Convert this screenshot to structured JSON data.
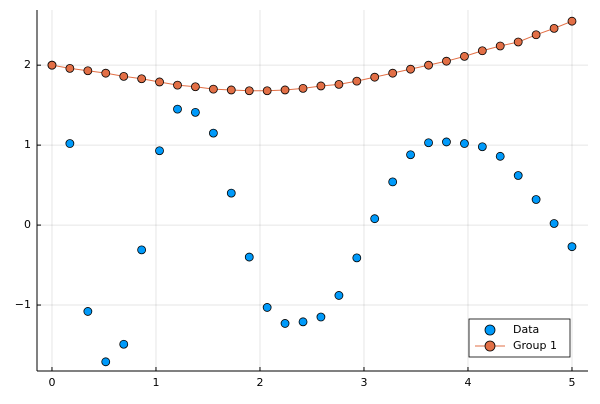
{
  "chart_data": {
    "type": "scatter",
    "x": [
      0,
      0.172,
      0.345,
      0.517,
      0.69,
      0.862,
      1.034,
      1.207,
      1.379,
      1.552,
      1.724,
      1.897,
      2.069,
      2.241,
      2.414,
      2.586,
      2.759,
      2.931,
      3.103,
      3.276,
      3.448,
      3.621,
      3.793,
      3.966,
      4.138,
      4.31,
      4.483,
      4.655,
      4.828,
      5
    ],
    "series": [
      {
        "name": "Data",
        "color": "#009afa",
        "mode": "markers",
        "values": [
          2.0,
          1.02,
          -1.08,
          -1.71,
          -1.49,
          -0.31,
          0.93,
          1.45,
          1.41,
          1.15,
          0.4,
          -0.4,
          -1.03,
          -1.23,
          -1.21,
          -1.15,
          -0.88,
          -0.41,
          0.08,
          0.54,
          0.88,
          1.03,
          1.04,
          1.02,
          0.98,
          0.86,
          0.62,
          0.32,
          0.02,
          -0.27
        ]
      },
      {
        "name": "Group 1",
        "color": "#e26f46",
        "mode": "lines+markers",
        "values": [
          2.0,
          1.96,
          1.93,
          1.9,
          1.86,
          1.83,
          1.79,
          1.75,
          1.73,
          1.7,
          1.69,
          1.68,
          1.68,
          1.69,
          1.71,
          1.74,
          1.76,
          1.8,
          1.85,
          1.9,
          1.95,
          2.0,
          2.05,
          2.11,
          2.18,
          2.24,
          2.29,
          2.38,
          2.46,
          2.55
        ]
      }
    ],
    "xlim": [
      -0.144,
      5.154
    ],
    "ylim": [
      -1.825,
      2.69
    ],
    "xticks": [
      0,
      1,
      2,
      3,
      4,
      5
    ],
    "yticks": [
      {
        "value": -1,
        "label": "−1"
      },
      0,
      1,
      2
    ],
    "grid": true,
    "legend": "bottom right"
  }
}
